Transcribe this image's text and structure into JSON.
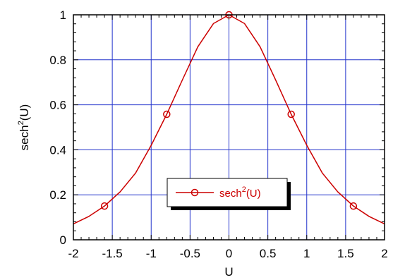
{
  "chart_data": {
    "type": "line",
    "xlabel": "U",
    "ylabel": "sech²(U)",
    "xlim": [
      -2,
      2
    ],
    "ylim": [
      0,
      1
    ],
    "grid": true,
    "legend_placement": "lower-center",
    "x_ticks": [
      "-2",
      "-1.5",
      "-1",
      "-0.5",
      "0",
      "0.5",
      "1",
      "1.5",
      "2"
    ],
    "y_ticks": [
      "0",
      "0.2",
      "0.4",
      "0.6",
      "0.8",
      "1"
    ],
    "series": [
      {
        "name": "sech²(U)",
        "line_x": [
          -2.0,
          -1.8,
          -1.6,
          -1.4,
          -1.2,
          -1.0,
          -0.8,
          -0.6,
          -0.4,
          -0.2,
          0.0,
          0.2,
          0.4,
          0.6,
          0.8,
          1.0,
          1.2,
          1.4,
          1.6,
          1.8,
          2.0
        ],
        "line_y": [
          0.071,
          0.104,
          0.15,
          0.213,
          0.297,
          0.42,
          0.558,
          0.71,
          0.858,
          0.961,
          1.0,
          0.961,
          0.858,
          0.71,
          0.558,
          0.42,
          0.297,
          0.213,
          0.15,
          0.104,
          0.071
        ],
        "marker_x": [
          -1.6,
          -0.8,
          0.0,
          0.8,
          1.6
        ],
        "marker_y": [
          0.15,
          0.558,
          1.0,
          0.558,
          0.15
        ]
      }
    ]
  },
  "colors": {
    "series": "#cc0000",
    "grid": "#2233cc",
    "frame": "#000000"
  }
}
